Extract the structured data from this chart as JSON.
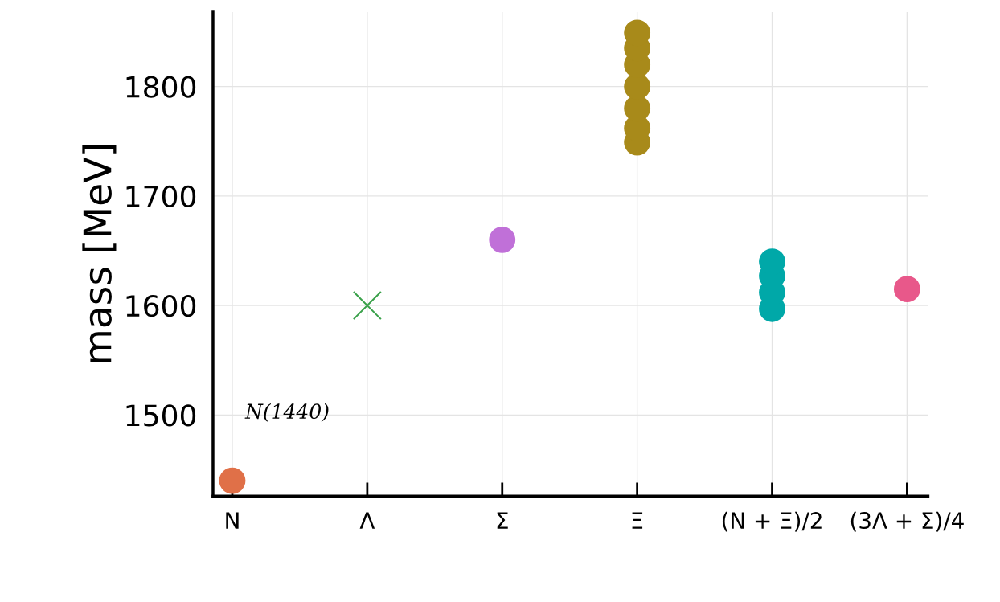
{
  "chart_data": {
    "type": "scatter",
    "ylabel": "mass [MeV]",
    "categories": [
      "N",
      "Λ",
      "Σ",
      "Ξ",
      "(N + Ξ)/2",
      "(3Λ + Σ)/4"
    ],
    "ylim": [
      1426,
      1868
    ],
    "yticks": [
      1500,
      1600,
      1700,
      1800
    ],
    "grid": true,
    "marker": "circle",
    "series": [
      {
        "color": "#e07048",
        "x": [
          "N"
        ],
        "values": [
          1440
        ]
      },
      {
        "color": "#3aa14a",
        "marker": "cross",
        "x": [
          "Λ"
        ],
        "values": [
          1600
        ]
      },
      {
        "color": "#c070d8",
        "x": [
          "Σ"
        ],
        "values": [
          1660
        ]
      },
      {
        "color": "#a88a1a",
        "x": [
          "Ξ",
          "Ξ",
          "Ξ",
          "Ξ",
          "Ξ",
          "Ξ",
          "Ξ"
        ],
        "values": [
          1749,
          1762,
          1780,
          1800,
          1820,
          1835,
          1849
        ]
      },
      {
        "color": "#00a8a8",
        "x": [
          "(N + Ξ)/2",
          "(N + Ξ)/2",
          "(N + Ξ)/2",
          "(N + Ξ)/2"
        ],
        "values": [
          1597,
          1612,
          1627,
          1640
        ]
      },
      {
        "color": "#e8588a",
        "x": [
          "(3Λ + Σ)/4"
        ],
        "values": [
          1615
        ]
      }
    ],
    "annotations": [
      "N(1440)"
    ]
  }
}
